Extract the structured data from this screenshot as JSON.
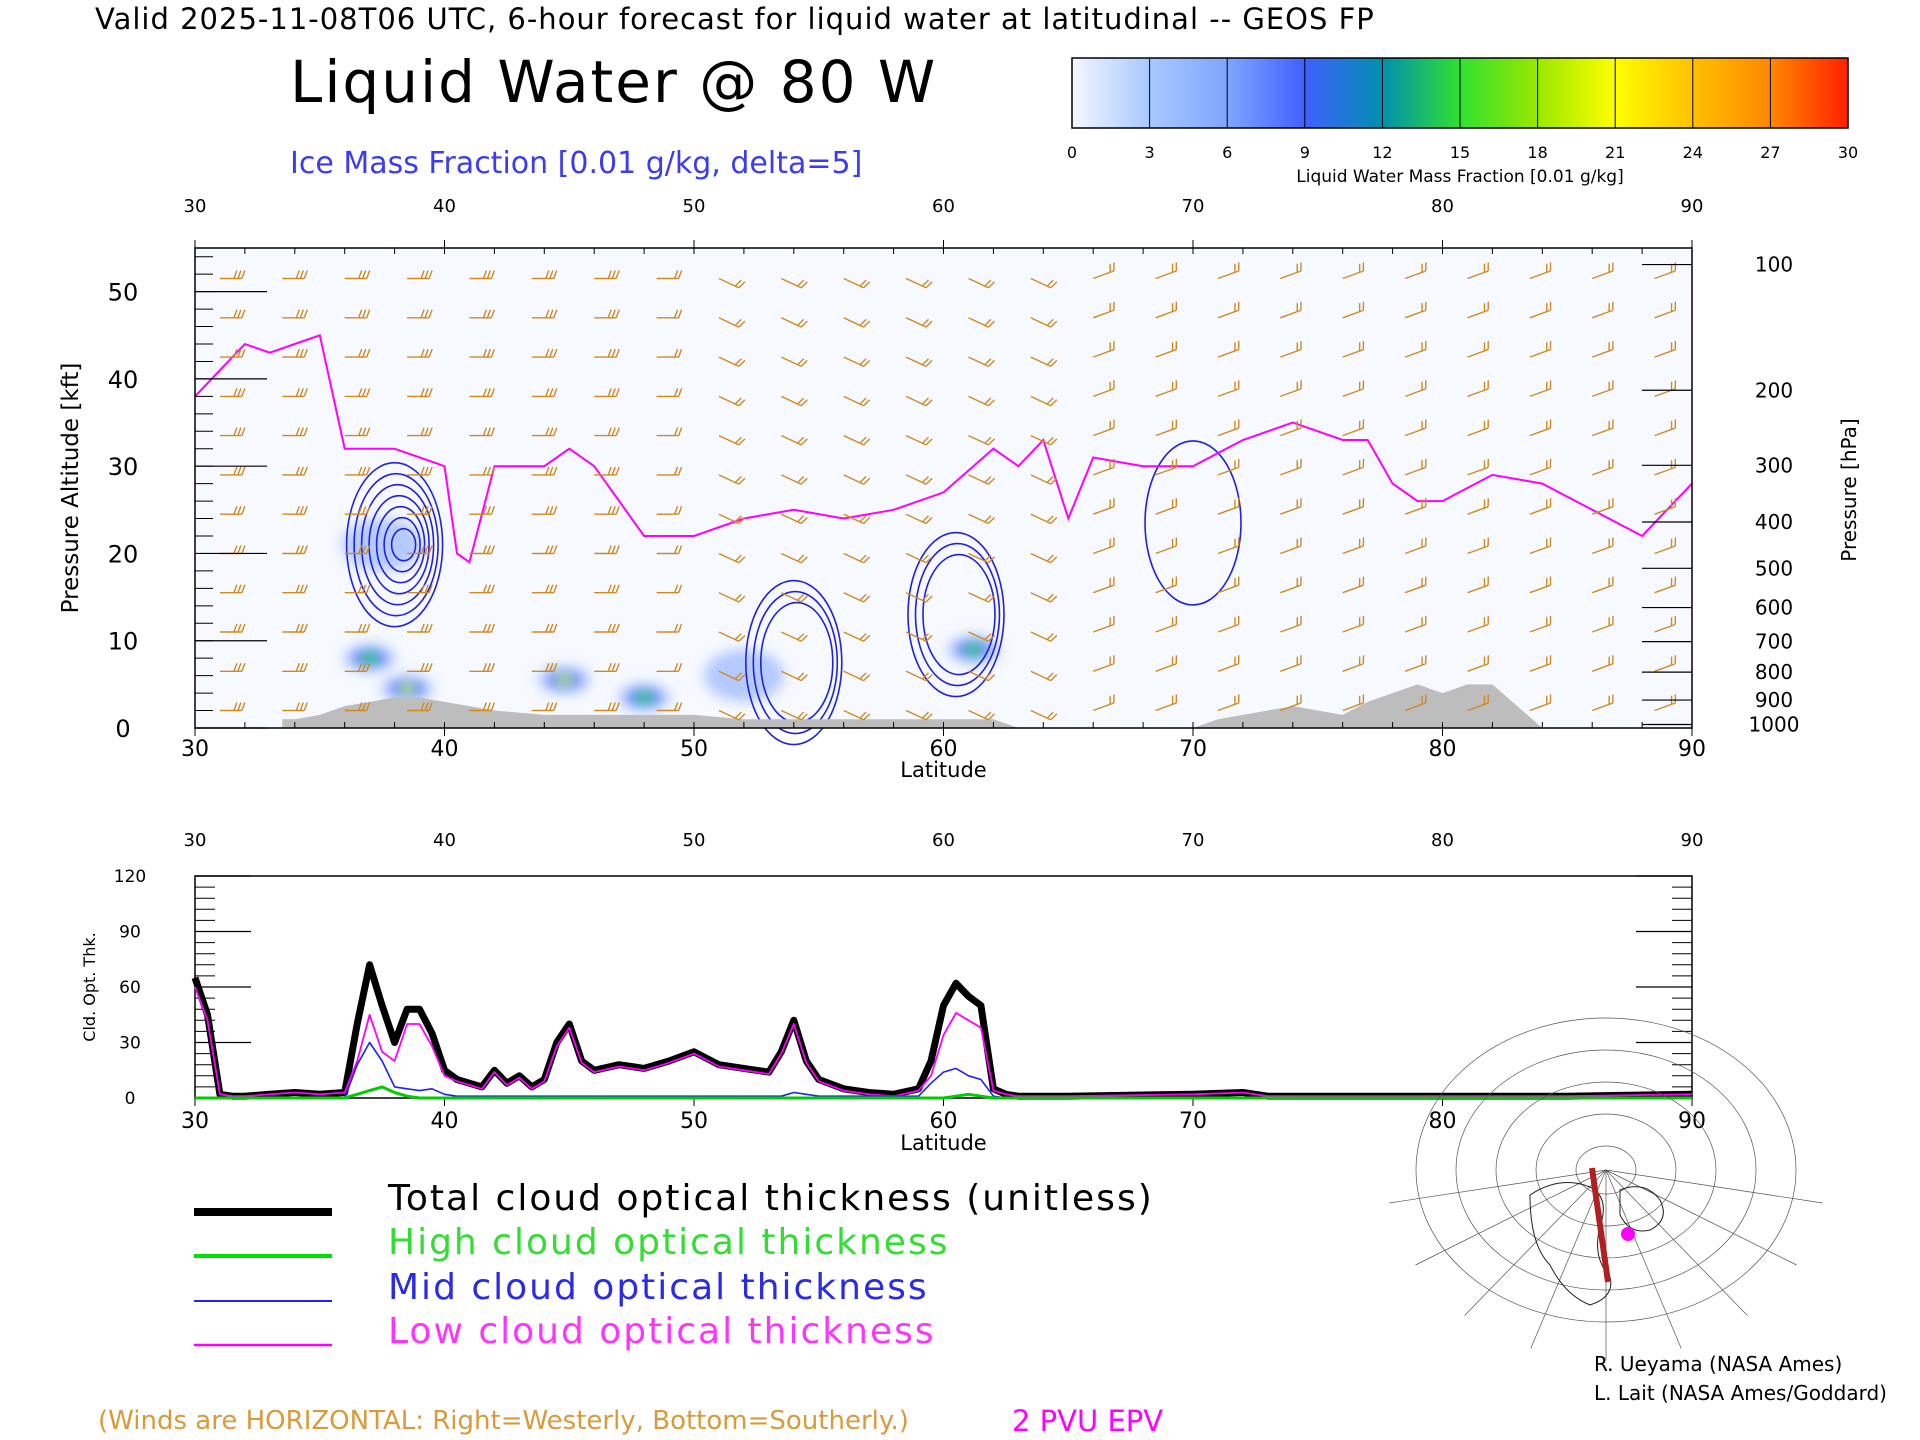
{
  "header": {
    "line": "Valid 2025-11-08T06 UTC, 6-hour forecast for liquid water at latitudinal -- GEOS FP",
    "title": "Liquid Water @ 80 W",
    "ice_label": "Ice Mass Fraction [0.01 g/kg, delta=5]"
  },
  "colorbar": {
    "ticks": [
      "0",
      "3",
      "6",
      "9",
      "12",
      "15",
      "18",
      "21",
      "24",
      "27",
      "30"
    ],
    "label": "Liquid Water Mass Fraction [0.01 g/kg]",
    "colors": [
      "#f4f7ff",
      "#a8c8ff",
      "#7fa5ff",
      "#4060ff",
      "#0090b0",
      "#30e030",
      "#9ae800",
      "#ffff00",
      "#ffc000",
      "#ff8800",
      "#ff2000"
    ]
  },
  "chart_data": [
    {
      "type": "heatmap",
      "panel": "cross-section",
      "xlabel": "Latitude",
      "ylabel": "Pressure Altitude [kft]",
      "y2label": "Pressure [hPa]",
      "xlim": [
        30,
        90
      ],
      "ylim": [
        0,
        55
      ],
      "x_ticks": [
        30,
        40,
        50,
        60,
        70,
        80,
        90
      ],
      "y_ticks": [
        0,
        10,
        20,
        30,
        40,
        50
      ],
      "pressure_ticks": [
        "100",
        "200",
        "300",
        "400",
        "500",
        "600",
        "700",
        "800",
        "900",
        "1000"
      ],
      "pressure_tick_alt_kft": [
        53.1,
        38.7,
        30.1,
        23.6,
        18.3,
        13.8,
        9.9,
        6.4,
        3.2,
        0.4
      ],
      "liquid_water_blobs": [
        {
          "lat": 37.0,
          "alt_kft": 8.0,
          "max": 15
        },
        {
          "lat": 38.5,
          "alt_kft": 4.5,
          "max": 18
        },
        {
          "lat": 44.8,
          "alt_kft": 5.5,
          "max": 18
        },
        {
          "lat": 48.0,
          "alt_kft": 3.5,
          "max": 12
        },
        {
          "lat": 61.2,
          "alt_kft": 9.0,
          "max": 15
        },
        {
          "lat": 37.5,
          "alt_kft": 21.0,
          "max": 6
        },
        {
          "lat": 52.0,
          "alt_kft": 6.0,
          "max": 6
        }
      ],
      "ice_contours": [
        {
          "lat": 38.0,
          "alt_kft": 21.0,
          "levels": 7
        },
        {
          "lat": 54.0,
          "alt_kft": 7.5,
          "levels": 3
        },
        {
          "lat": 60.5,
          "alt_kft": 13.0,
          "levels": 3
        },
        {
          "lat": 70.0,
          "alt_kft": 23.5,
          "levels": 1
        }
      ],
      "pvu_line_lat": [
        30,
        31,
        32,
        33,
        34,
        35,
        36,
        38,
        40,
        40.5,
        41,
        42,
        44,
        45,
        46,
        48,
        50,
        52,
        54,
        56,
        58,
        60,
        62,
        63,
        64,
        65,
        66,
        68,
        70,
        72,
        74,
        76,
        77,
        78,
        79,
        80,
        82,
        84,
        86,
        88,
        90
      ],
      "pvu_line_alt": [
        38,
        41,
        44,
        43,
        44,
        45,
        32,
        32,
        30,
        20,
        19,
        30,
        30,
        32,
        30,
        22,
        22,
        24,
        25,
        24,
        25,
        27,
        32,
        30,
        33,
        24,
        31,
        30,
        30,
        33,
        35,
        33,
        33,
        28,
        26,
        26,
        29,
        28,
        25,
        22,
        28
      ],
      "terrain_lat": [
        33.5,
        34,
        35,
        36,
        37,
        38,
        39,
        40,
        41,
        42,
        44,
        46,
        48,
        50,
        52,
        54,
        56,
        58,
        60,
        62,
        63,
        64,
        70,
        71,
        72,
        73,
        74,
        75,
        76,
        77,
        78,
        79,
        80,
        81,
        82,
        83,
        84
      ],
      "terrain_kft": [
        1,
        1,
        1.5,
        2.5,
        3,
        3.5,
        3.5,
        3,
        2.5,
        2,
        1.5,
        1.5,
        1.5,
        1.5,
        1,
        1,
        1,
        1,
        1,
        1,
        0,
        0,
        0,
        1,
        1.5,
        2,
        2.5,
        2,
        1.5,
        3,
        4,
        5,
        4,
        5,
        5,
        2.5,
        0
      ]
    },
    {
      "type": "line",
      "panel": "optical-thickness",
      "xlabel": "Latitude",
      "ylabel": "Cld. Opt. Thk.",
      "xlim": [
        30,
        90
      ],
      "ylim": [
        0,
        120
      ],
      "x_ticks": [
        30,
        40,
        50,
        60,
        70,
        80,
        90
      ],
      "y_ticks": [
        0,
        30,
        60,
        90,
        120
      ],
      "x": [
        30,
        30.5,
        31,
        31.5,
        32,
        33,
        34,
        35,
        36,
        36.5,
        37,
        37.5,
        38,
        38.5,
        39,
        39.5,
        40,
        40.5,
        41,
        41.5,
        42,
        42.5,
        43,
        43.5,
        44,
        44.5,
        45,
        45.5,
        46,
        47,
        48,
        49,
        50,
        51,
        52,
        53,
        53.5,
        54,
        54.5,
        55,
        56,
        57,
        58,
        59,
        59.5,
        60,
        60.5,
        61,
        61.5,
        62,
        62.5,
        63,
        65,
        70,
        72,
        73,
        75,
        80,
        85,
        90
      ],
      "series": [
        {
          "name": "Total cloud optical thickness (unitless)",
          "color": "#000000",
          "values": [
            65,
            45,
            2,
            1,
            1,
            2,
            3,
            2,
            3,
            40,
            72,
            50,
            30,
            48,
            48,
            35,
            15,
            10,
            8,
            6,
            15,
            8,
            12,
            6,
            10,
            30,
            40,
            20,
            15,
            18,
            16,
            20,
            25,
            18,
            16,
            14,
            25,
            42,
            20,
            10,
            5,
            3,
            2,
            5,
            20,
            50,
            62,
            55,
            50,
            5,
            2,
            1,
            1,
            2,
            3,
            1,
            1,
            1,
            1,
            2
          ]
        },
        {
          "name": "High cloud optical thickness",
          "color": "#00cc00",
          "values": [
            0,
            0,
            0,
            0,
            0,
            0,
            0,
            0,
            0,
            2,
            4,
            6,
            3,
            1,
            0,
            0,
            0,
            0,
            0,
            0,
            0,
            0,
            0,
            0,
            0,
            0,
            0,
            0,
            0,
            0,
            0,
            0,
            0,
            0,
            0,
            0,
            0,
            0,
            0,
            0,
            0,
            0,
            0,
            0,
            0,
            0,
            1,
            2,
            1,
            0,
            0,
            0,
            0,
            0,
            0,
            0,
            0,
            0,
            0,
            0
          ]
        },
        {
          "name": "Mid cloud optical thickness",
          "color": "#2020ff",
          "values": [
            0,
            0,
            0,
            0,
            0,
            0,
            0,
            0,
            0,
            18,
            30,
            20,
            6,
            5,
            4,
            5,
            2,
            1,
            1,
            1,
            1,
            1,
            1,
            1,
            1,
            1,
            1,
            1,
            1,
            1,
            1,
            1,
            1,
            1,
            1,
            1,
            1,
            3,
            2,
            1,
            1,
            1,
            1,
            1,
            8,
            14,
            16,
            12,
            10,
            1,
            0,
            0,
            0,
            0,
            0,
            0,
            0,
            0,
            0,
            0
          ]
        },
        {
          "name": "Low cloud optical thickness",
          "color": "#ff00ff",
          "values": [
            60,
            42,
            2,
            1,
            1,
            2,
            3,
            2,
            3,
            20,
            45,
            25,
            20,
            40,
            40,
            28,
            12,
            9,
            7,
            5,
            14,
            7,
            11,
            5,
            9,
            28,
            38,
            19,
            14,
            17,
            15,
            19,
            24,
            17,
            15,
            13,
            24,
            40,
            19,
            9,
            4,
            2,
            1,
            4,
            12,
            34,
            46,
            42,
            38,
            4,
            2,
            1,
            1,
            2,
            3,
            1,
            1,
            1,
            1,
            2
          ]
        }
      ]
    }
  ],
  "legend": [
    {
      "label": "Total cloud optical thickness (unitless)",
      "color": "#000000"
    },
    {
      "label": "High cloud optical thickness",
      "color": "#00e000"
    },
    {
      "label": "Mid cloud optical thickness",
      "color": "#2020ff"
    },
    {
      "label": "Low cloud optical thickness",
      "color": "#ff00ff"
    }
  ],
  "footer": {
    "winds_note": "(Winds are HORIZONTAL: Right=Westerly, Bottom=Southerly.)",
    "pvu_label": "2 PVU EPV",
    "credit1": "R. Ueyama (NASA Ames)",
    "credit2": "L. Lait (NASA Ames/Goddard)"
  },
  "colors": {
    "wind_barbs": "#d08a20",
    "pvu_line": "#ff00ff",
    "ice_contour": "#2020e0",
    "terrain": "#bdbdbd",
    "map_track": "#b02020",
    "map_marker": "#ff00ff"
  }
}
